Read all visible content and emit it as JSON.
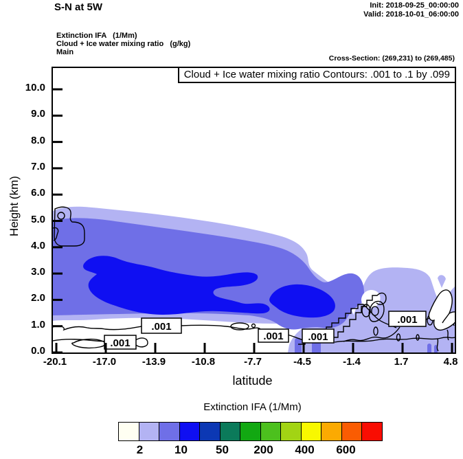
{
  "header": {
    "title": "S-N at 5W",
    "init_line": "Init: 2018-09-25_00:00:00",
    "valid_line": "Valid: 2018-10-01_06:00:00",
    "field_line_1": "Extinction IFA   (1/Mm)",
    "field_line_2": "Cloud + Ice water mixing ratio   (g/kg)",
    "field_line_3": "Main",
    "cross_section": "Cross-Section: (269,231) to (269,485)"
  },
  "chart_data": {
    "type": "heatmap",
    "subtype": "filled-contour vertical cross-section",
    "title": "Cloud + Ice water mixing ratio Contours: .001 to .1 by .099",
    "xlabel": "latitude",
    "ylabel": "Height (km)",
    "xlim": [
      -20.1,
      4.8
    ],
    "ylim": [
      0,
      10.8
    ],
    "grid": false,
    "x_ticks": [
      "-20.1",
      "-17.0",
      "-13.9",
      "-10.8",
      "-7.7",
      "-4.5",
      "-1.4",
      "1.7",
      "4.8"
    ],
    "y_ticks": [
      "0.0",
      "1.0",
      "2.0",
      "3.0",
      "4.0",
      "5.0",
      "6.0",
      "7.0",
      "8.0",
      "9.0",
      "10.0"
    ],
    "fill_field": "Extinction IFA (1/Mm)",
    "line_field": "Cloud + Ice water mixing ratio (g/kg)",
    "contour_line_label": ".001",
    "contour_label_points": [
      {
        "lat": -16.2,
        "height_km": 0.45
      },
      {
        "lat": -13.6,
        "height_km": 1.05
      },
      {
        "lat": -6.6,
        "height_km": 0.7
      },
      {
        "lat": -3.9,
        "height_km": 0.7
      },
      {
        "lat": 1.4,
        "height_km": 1.3
      }
    ],
    "filled_regions": [
      {
        "level_range": "2-10 1/Mm",
        "color": "#b3b3f3",
        "lat_range": [
          -20.1,
          4.8
        ],
        "height_km_range": [
          0.0,
          5.4
        ],
        "note": "broad aerosol/cloud layer; top slopes from ~5.3 km in the south to ~2.5 km north of lat -5, reaching the surface east of lat -5.5"
      },
      {
        "level_range": "10-50 1/Mm",
        "color": "#6f6fe7",
        "lat_range": [
          -20.1,
          -3.2
        ],
        "height_km_range": [
          1.4,
          4.9
        ]
      },
      {
        "level_range": "50-200 1/Mm (west core)",
        "color": "#0f0ff2",
        "lat_range": [
          -18.4,
          -7.2
        ],
        "height_km_range": [
          1.6,
          3.6
        ]
      },
      {
        "level_range": "50-200 1/Mm (east core)",
        "color": "#0f0ff2",
        "lat_range": [
          -6.6,
          -3.7
        ],
        "height_km_range": [
          1.3,
          2.6
        ]
      }
    ]
  },
  "colorbar": {
    "title": "Extinction IFA  (1/Mm)",
    "tick_labels": [
      "2",
      "10",
      "50",
      "200",
      "400",
      "600"
    ],
    "cell_colors": [
      "#fffff2",
      "#b3b3f3",
      "#6f6fe7",
      "#0f0ff2",
      "#0c38b4",
      "#0b7a5a",
      "#12a812",
      "#4cc01e",
      "#a2d414",
      "#f8f800",
      "#fbaa02",
      "#fa5c02",
      "#f90d02"
    ]
  }
}
